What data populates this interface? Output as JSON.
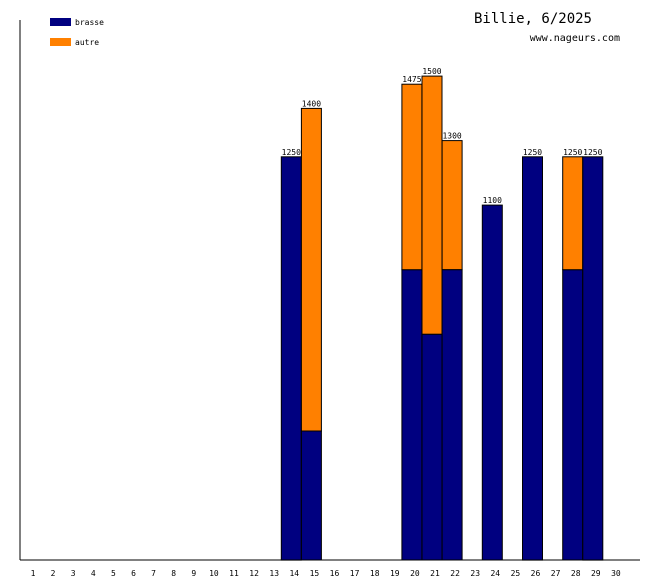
{
  "chart_data": {
    "type": "bar",
    "stacked": true,
    "title": "Billie, 6/2025",
    "subtitle": "www.nageurs.com",
    "xlabel": "",
    "ylabel": "",
    "ylim": [
      0,
      1500
    ],
    "grid": false,
    "legend_position": "top-left",
    "categories": [
      "1",
      "2",
      "3",
      "4",
      "5",
      "6",
      "7",
      "8",
      "9",
      "10",
      "11",
      "12",
      "13",
      "14",
      "15",
      "16",
      "17",
      "18",
      "19",
      "20",
      "21",
      "22",
      "23",
      "24",
      "25",
      "26",
      "27",
      "28",
      "29",
      "30"
    ],
    "series": [
      {
        "name": "brasse",
        "color": "#000080",
        "values": [
          0,
          0,
          0,
          0,
          0,
          0,
          0,
          0,
          0,
          0,
          0,
          0,
          0,
          1250,
          400,
          0,
          0,
          0,
          0,
          900,
          700,
          900,
          0,
          1100,
          0,
          1250,
          0,
          900,
          1250,
          0
        ]
      },
      {
        "name": "autre",
        "color": "#ff8000",
        "values": [
          0,
          0,
          0,
          0,
          0,
          0,
          0,
          0,
          0,
          0,
          0,
          0,
          0,
          0,
          1000,
          0,
          0,
          0,
          0,
          575,
          800,
          400,
          0,
          0,
          0,
          0,
          0,
          350,
          0,
          0
        ]
      }
    ],
    "totals": [
      "",
      "",
      "",
      "",
      "",
      "",
      "",
      "",
      "",
      "",
      "",
      "",
      "",
      "1250",
      "1400",
      "",
      "",
      "",
      "",
      "1475",
      "1500",
      "1300",
      "",
      "1100",
      "",
      "1250",
      "",
      "1250",
      "1250",
      ""
    ]
  }
}
